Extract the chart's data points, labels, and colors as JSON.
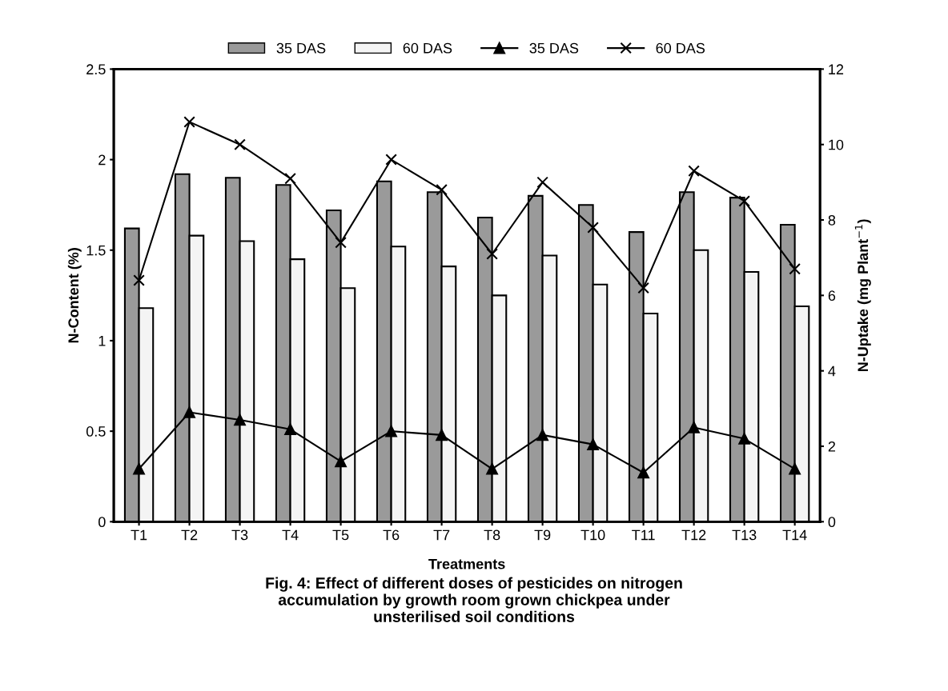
{
  "chart_data": {
    "type": "bar",
    "xlabel": "Treatments",
    "ylabel": "N-Content (%)",
    "y2label": "N-Uptake (mg Plant$^{−1}$)",
    "categories": [
      "T1",
      "T2",
      "T3",
      "T4",
      "T5",
      "T6",
      "T7",
      "T8",
      "T9",
      "T10",
      "T11",
      "T12",
      "T13",
      "T14"
    ],
    "series": [
      {
        "name": "35 DAS",
        "color": "#9a9a9a",
        "values": [
          1.62,
          1.92,
          1.9,
          1.86,
          1.72,
          1.88,
          1.82,
          1.68,
          1.8,
          1.75,
          1.6,
          1.82,
          1.79,
          1.64
        ]
      },
      {
        "name": "60 DAS",
        "color": "#f4f4f4",
        "values": [
          1.18,
          1.58,
          1.55,
          1.45,
          1.29,
          1.52,
          1.41,
          1.25,
          1.47,
          1.31,
          1.15,
          1.5,
          1.38,
          1.19
        ]
      },
      {
        "name": "35 DAS",
        "type": "line",
        "axis": "y2",
        "marker": "triangle",
        "color": "#000000",
        "values": [
          1.4,
          2.9,
          2.7,
          2.45,
          1.6,
          2.4,
          2.3,
          1.4,
          2.3,
          2.05,
          1.3,
          2.5,
          2.2,
          1.4
        ]
      },
      {
        "name": "60 DAS",
        "type": "line",
        "axis": "y2",
        "marker": "cross",
        "color": "#000000",
        "values": [
          6.4,
          10.6,
          10.0,
          9.1,
          7.4,
          9.6,
          8.8,
          7.1,
          9.0,
          7.8,
          6.2,
          9.3,
          8.5,
          6.7
        ]
      }
    ],
    "ylim": [
      0,
      2.5
    ],
    "yticks": [
      0,
      0.5,
      1,
      1.5,
      2,
      2.5
    ],
    "y2lim": [
      0,
      12
    ],
    "y2ticks": [
      0,
      2,
      4,
      6,
      8,
      10,
      12
    ],
    "grid": false,
    "legend": "top",
    "line_style": "solid",
    "annotations": [
      "Fig. 4: Effect of different doses of pesticides on nitrogen\naccumulation by growth room grown chickpea under\nunsterilised soil conditions"
    ]
  }
}
